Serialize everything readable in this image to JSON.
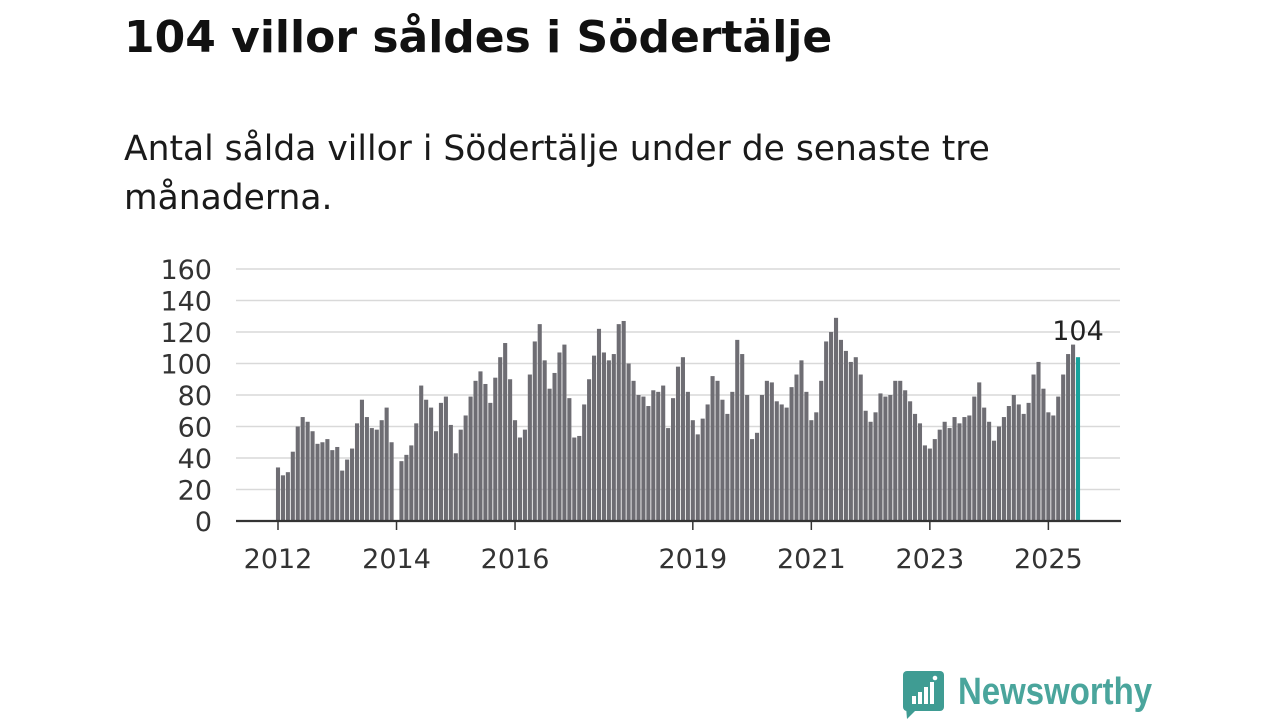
{
  "chart_data": {
    "type": "bar",
    "title": "104 villor såldes i Södertälje",
    "subtitle": "Antal sålda villor i Södertälje under de senaste tre månaderna.",
    "x": [
      "2012-01",
      "2012-02",
      "2012-03",
      "2012-04",
      "2012-05",
      "2012-06",
      "2012-07",
      "2012-08",
      "2012-09",
      "2012-10",
      "2012-11",
      "2012-12",
      "2013-01",
      "2013-02",
      "2013-03",
      "2013-04",
      "2013-05",
      "2013-06",
      "2013-07",
      "2013-08",
      "2013-09",
      "2013-10",
      "2013-11",
      "2013-12",
      "2014-02",
      "2014-03",
      "2014-04",
      "2014-05",
      "2014-06",
      "2014-07",
      "2014-08",
      "2014-09",
      "2014-10",
      "2014-11",
      "2014-12",
      "2015-01",
      "2015-02",
      "2015-03",
      "2015-04",
      "2015-05",
      "2015-06",
      "2015-07",
      "2015-08",
      "2015-09",
      "2015-10",
      "2015-11",
      "2015-12",
      "2016-01",
      "2016-02",
      "2016-03",
      "2016-04",
      "2016-05",
      "2016-06",
      "2016-07",
      "2016-08",
      "2016-09",
      "2016-10",
      "2016-11",
      "2016-12",
      "2017-01",
      "2017-02",
      "2017-03",
      "2017-04",
      "2017-05",
      "2017-06",
      "2017-07",
      "2017-08",
      "2017-09",
      "2017-10",
      "2017-11",
      "2017-12",
      "2018-01",
      "2018-02",
      "2018-03",
      "2018-04",
      "2018-05",
      "2018-06",
      "2018-07",
      "2018-08",
      "2018-09",
      "2018-10",
      "2018-11",
      "2018-12",
      "2019-01",
      "2019-02",
      "2019-03",
      "2019-04",
      "2019-05",
      "2019-06",
      "2019-07",
      "2019-08",
      "2019-09",
      "2019-10",
      "2019-11",
      "2019-12",
      "2020-01",
      "2020-02",
      "2020-03",
      "2020-04",
      "2020-05",
      "2020-06",
      "2020-07",
      "2020-08",
      "2020-09",
      "2020-10",
      "2020-11",
      "2020-12",
      "2021-01",
      "2021-02",
      "2021-03",
      "2021-04",
      "2021-05",
      "2021-06",
      "2021-07",
      "2021-08",
      "2021-09",
      "2021-10",
      "2021-11",
      "2021-12",
      "2022-01",
      "2022-02",
      "2022-03",
      "2022-04",
      "2022-05",
      "2022-06",
      "2022-07",
      "2022-08",
      "2022-09",
      "2022-10",
      "2022-11",
      "2022-12",
      "2023-01",
      "2023-02",
      "2023-03",
      "2023-04",
      "2023-05",
      "2023-06",
      "2023-07",
      "2023-08",
      "2023-09",
      "2023-10",
      "2023-11",
      "2023-12",
      "2024-01",
      "2024-02",
      "2024-03",
      "2024-04",
      "2024-05",
      "2024-06",
      "2024-07",
      "2024-08",
      "2024-09",
      "2024-10",
      "2024-11",
      "2024-12",
      "2025-01",
      "2025-02",
      "2025-03",
      "2025-04",
      "2025-05",
      "2025-06",
      "2025-07"
    ],
    "values": [
      34,
      29,
      31,
      44,
      60,
      66,
      63,
      57,
      49,
      50,
      52,
      45,
      47,
      32,
      39,
      46,
      62,
      77,
      66,
      59,
      58,
      64,
      72,
      50,
      38,
      42,
      48,
      62,
      86,
      77,
      72,
      57,
      75,
      79,
      61,
      43,
      58,
      67,
      79,
      89,
      95,
      87,
      75,
      91,
      104,
      113,
      90,
      64,
      53,
      58,
      93,
      114,
      125,
      102,
      84,
      94,
      107,
      112,
      78,
      53,
      54,
      74,
      90,
      105,
      122,
      107,
      102,
      106,
      125,
      127,
      100,
      89,
      80,
      79,
      73,
      83,
      82,
      86,
      59,
      78,
      98,
      104,
      82,
      64,
      55,
      65,
      74,
      92,
      89,
      77,
      68,
      82,
      115,
      106,
      80,
      52,
      56,
      80,
      89,
      88,
      76,
      74,
      72,
      85,
      93,
      102,
      82,
      64,
      69,
      89,
      114,
      120,
      129,
      115,
      108,
      101,
      104,
      93,
      70,
      63,
      69,
      81,
      79,
      80,
      89,
      89,
      83,
      76,
      68,
      62,
      48,
      46,
      52,
      58,
      63,
      59,
      66,
      62,
      66,
      67,
      79,
      88,
      72,
      63,
      51,
      60,
      66,
      73,
      80,
      74,
      68,
      75,
      93,
      101,
      84,
      69,
      67,
      79,
      93,
      106,
      112,
      104
    ],
    "x_ticks": [
      "2012",
      "2014",
      "2016",
      "2019",
      "2021",
      "2023",
      "2025"
    ],
    "y_ticks": [
      0,
      20,
      40,
      60,
      80,
      100,
      120,
      140,
      160
    ],
    "ylim": [
      0,
      160
    ],
    "grid": true,
    "highlight": {
      "x": "2025-07",
      "label": "104"
    },
    "colors": {
      "bar": "#6e6d73",
      "highlight": "#17a29c",
      "grid": "#d9d9d9",
      "axis": "#333333"
    }
  },
  "branding": {
    "name": "Newsworthy",
    "icon": "newsworthy-logo-icon",
    "text_color": "#4aa59c",
    "icon_color": "#3f9c93"
  }
}
